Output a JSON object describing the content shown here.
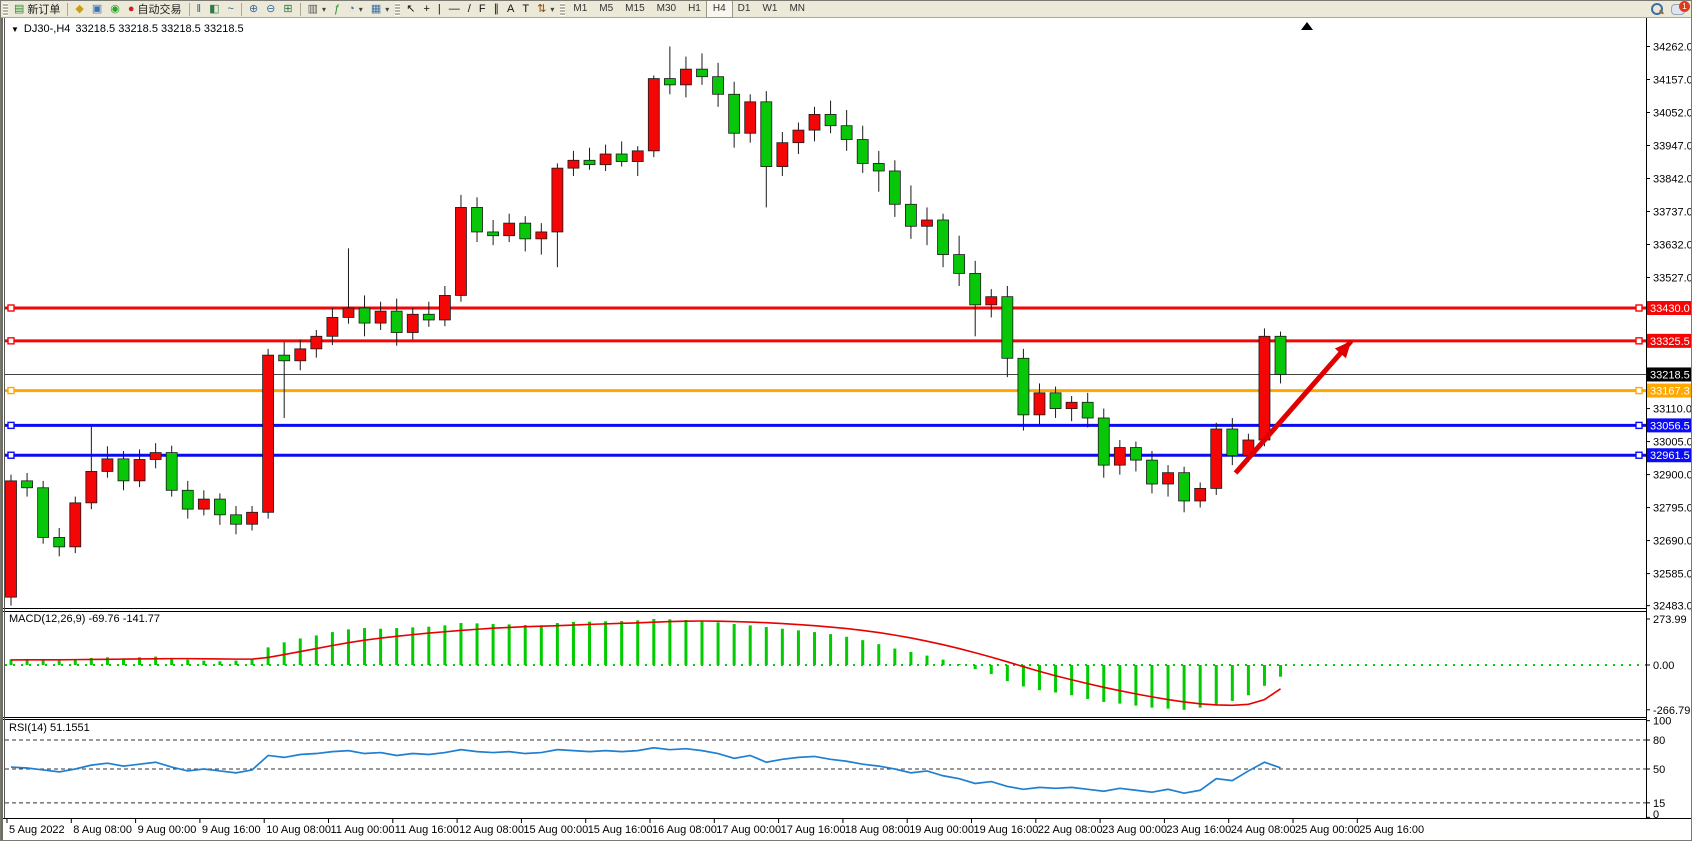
{
  "toolbar": {
    "new_order": {
      "label": "新订单",
      "glyph": "▤",
      "color": "#2e8b2e"
    },
    "tools": [
      {
        "name": "styler-button",
        "glyph": "◆",
        "color": "#c8a018"
      },
      {
        "name": "terminal-button",
        "glyph": "▣",
        "color": "#3d6fb8"
      },
      {
        "name": "signal-button",
        "glyph": "◉",
        "color": "#2fa32f"
      },
      {
        "name": "autotrade-button",
        "glyph": "●",
        "color": "#cc2222",
        "label": "自动交易"
      }
    ],
    "chart_modes": [
      {
        "name": "bar-chart-button",
        "glyph": "‖",
        "color": "#355f8a"
      },
      {
        "name": "candlestick-button",
        "glyph": "◧",
        "color": "#2f7a46"
      },
      {
        "name": "line-chart-button",
        "glyph": "~",
        "color": "#355f8a"
      }
    ],
    "zoom_tools": [
      {
        "name": "zoom-in-button",
        "glyph": "⊕",
        "color": "#3a6ea5"
      },
      {
        "name": "zoom-out-button",
        "glyph": "⊖",
        "color": "#3a6ea5"
      },
      {
        "name": "tile-windows-button",
        "glyph": "⊞",
        "color": "#2f7a46"
      }
    ],
    "object_tools": [
      {
        "name": "profiles-button",
        "glyph": "▥",
        "color": "#555",
        "caret": true
      },
      {
        "name": "indicators-button",
        "glyph": "ƒ",
        "color": "#2e8b2e"
      },
      {
        "name": "periods-button",
        "glyph": "◔",
        "color": "#3a6ea5",
        "caret": true
      },
      {
        "name": "templates-button",
        "glyph": "▦",
        "color": "#3a6ea5",
        "caret": true
      }
    ],
    "draw_tools": [
      {
        "name": "cursor-button",
        "glyph": "↖",
        "color": "#111"
      },
      {
        "name": "crosshair-button",
        "glyph": "+",
        "color": "#111"
      },
      {
        "name": "vline-button",
        "glyph": "|",
        "color": "#111"
      },
      {
        "name": "hline-button",
        "glyph": "—",
        "color": "#111"
      },
      {
        "name": "trendline-button",
        "glyph": "/",
        "color": "#111"
      },
      {
        "name": "fibo-button",
        "glyph": "F",
        "color": "#111"
      },
      {
        "name": "channel-button",
        "glyph": "∥",
        "color": "#111"
      },
      {
        "name": "text-button",
        "glyph": "A",
        "color": "#111"
      },
      {
        "name": "label-button",
        "glyph": "T",
        "color": "#111"
      },
      {
        "name": "arrows-button",
        "glyph": "⇅",
        "color": "#884400",
        "caret": true
      }
    ],
    "timeframes": [
      "M1",
      "M5",
      "M15",
      "M30",
      "H1",
      "H4",
      "D1",
      "W1",
      "MN"
    ],
    "active_timeframe": "H4",
    "chat_badge": "1"
  },
  "chart_header": {
    "collapse_icon": "▼",
    "symbol_period": "DJ30-,H4",
    "quotes": "33218.5 33218.5 33218.5 33218.5"
  },
  "macd_label": "MACD(12,26,9) -69.76 -141.77",
  "rsi_label": "RSI(14) 51.1551",
  "chart_data": {
    "type": "candlestick",
    "symbol": "DJ30-",
    "timeframe": "H4",
    "current_price": 33218.5,
    "colors": {
      "up": "#f40606",
      "down": "#08c608",
      "wick": "#1a1a1a",
      "macd_hist": "#00cc00",
      "macd_signal": "#e80000",
      "rsi_line": "#1f7fd0",
      "level_dash": "#333333",
      "red_line": "#f40606",
      "orange_line": "#ffa800",
      "blue_line": "#0c0cf4",
      "price_line": "#444444",
      "arrow": "#e00000"
    },
    "candles": [
      [
        32510,
        32900,
        32483,
        32880
      ],
      [
        32880,
        32905,
        32830,
        32858
      ],
      [
        32858,
        32880,
        32680,
        32700
      ],
      [
        32700,
        32730,
        32640,
        32670
      ],
      [
        32670,
        32830,
        32650,
        32810
      ],
      [
        32810,
        33056,
        32790,
        32910
      ],
      [
        32910,
        32990,
        32890,
        32950
      ],
      [
        32950,
        32975,
        32850,
        32880
      ],
      [
        32880,
        32980,
        32860,
        32948
      ],
      [
        32948,
        33000,
        32920,
        32970
      ],
      [
        32970,
        32992,
        32830,
        32850
      ],
      [
        32850,
        32880,
        32760,
        32790
      ],
      [
        32790,
        32850,
        32770,
        32822
      ],
      [
        32822,
        32840,
        32740,
        32772
      ],
      [
        32772,
        32800,
        32710,
        32742
      ],
      [
        32742,
        32800,
        32722,
        32780
      ],
      [
        32780,
        33300,
        32760,
        33280
      ],
      [
        33280,
        33322,
        33080,
        33262
      ],
      [
        33262,
        33330,
        33232,
        33300
      ],
      [
        33300,
        33360,
        33272,
        33340
      ],
      [
        33340,
        33430,
        33312,
        33400
      ],
      [
        33400,
        33620,
        33380,
        33430
      ],
      [
        33430,
        33470,
        33340,
        33382
      ],
      [
        33382,
        33450,
        33360,
        33420
      ],
      [
        33420,
        33460,
        33310,
        33352
      ],
      [
        33352,
        33430,
        33330,
        33410
      ],
      [
        33410,
        33450,
        33370,
        33392
      ],
      [
        33392,
        33500,
        33372,
        33470
      ],
      [
        33470,
        33790,
        33450,
        33750
      ],
      [
        33750,
        33782,
        33640,
        33672
      ],
      [
        33672,
        33710,
        33630,
        33660
      ],
      [
        33660,
        33730,
        33640,
        33700
      ],
      [
        33700,
        33722,
        33610,
        33650
      ],
      [
        33650,
        33700,
        33600,
        33672
      ],
      [
        33672,
        33890,
        33560,
        33875
      ],
      [
        33875,
        33930,
        33850,
        33900
      ],
      [
        33900,
        33940,
        33870,
        33886
      ],
      [
        33886,
        33950,
        33866,
        33920
      ],
      [
        33920,
        33960,
        33880,
        33896
      ],
      [
        33896,
        33945,
        33850,
        33930
      ],
      [
        33930,
        34170,
        33910,
        34160
      ],
      [
        34160,
        34262,
        34110,
        34140
      ],
      [
        34140,
        34230,
        34100,
        34190
      ],
      [
        34190,
        34240,
        34140,
        34166
      ],
      [
        34166,
        34210,
        34070,
        34110
      ],
      [
        34110,
        34150,
        33940,
        33986
      ],
      [
        33986,
        34110,
        33956,
        34086
      ],
      [
        34086,
        34120,
        33750,
        33880
      ],
      [
        33880,
        33990,
        33850,
        33956
      ],
      [
        33956,
        34020,
        33920,
        33996
      ],
      [
        33996,
        34070,
        33960,
        34046
      ],
      [
        34046,
        34090,
        33986,
        34010
      ],
      [
        34010,
        34060,
        33930,
        33966
      ],
      [
        33966,
        34010,
        33860,
        33890
      ],
      [
        33890,
        33930,
        33800,
        33866
      ],
      [
        33866,
        33900,
        33720,
        33760
      ],
      [
        33760,
        33820,
        33650,
        33690
      ],
      [
        33690,
        33750,
        33630,
        33710
      ],
      [
        33710,
        33730,
        33560,
        33600
      ],
      [
        33600,
        33660,
        33500,
        33540
      ],
      [
        33540,
        33580,
        33340,
        33440
      ],
      [
        33440,
        33490,
        33400,
        33466
      ],
      [
        33466,
        33500,
        33210,
        33270
      ],
      [
        33270,
        33300,
        33040,
        33090
      ],
      [
        33090,
        33190,
        33060,
        33160
      ],
      [
        33160,
        33180,
        33080,
        33110
      ],
      [
        33110,
        33150,
        33070,
        33130
      ],
      [
        33130,
        33160,
        33050,
        33080
      ],
      [
        33080,
        33110,
        32890,
        32930
      ],
      [
        32930,
        33010,
        32900,
        32986
      ],
      [
        32986,
        33005,
        32910,
        32946
      ],
      [
        32946,
        32975,
        32840,
        32870
      ],
      [
        32870,
        32930,
        32830,
        32906
      ],
      [
        32906,
        32925,
        32780,
        32816
      ],
      [
        32816,
        32875,
        32795,
        32856
      ],
      [
        32856,
        33065,
        32835,
        33045
      ],
      [
        33045,
        33080,
        32930,
        32960
      ],
      [
        32960,
        33030,
        32940,
        33010
      ],
      [
        33010,
        33365,
        32990,
        33340
      ],
      [
        33340,
        33355,
        33190,
        33218.5
      ]
    ],
    "macd_main": [
      34,
      36,
      30,
      26,
      32,
      42,
      46,
      40,
      46,
      50,
      42,
      32,
      26,
      22,
      26,
      32,
      105,
      135,
      158,
      176,
      196,
      212,
      220,
      216,
      220,
      224,
      228,
      236,
      250,
      248,
      244,
      242,
      238,
      236,
      250,
      256,
      258,
      260,
      262,
      266,
      274,
      272,
      268,
      262,
      254,
      244,
      236,
      226,
      216,
      206,
      196,
      184,
      168,
      148,
      124,
      98,
      78,
      56,
      32,
      6,
      -24,
      -54,
      -96,
      -128,
      -150,
      -164,
      -180,
      -202,
      -220,
      -230,
      -242,
      -254,
      -260,
      -266.8,
      -254,
      -236,
      -214,
      -180,
      -124,
      -69.8
    ],
    "macd_signal_series": [
      30,
      31,
      31,
      31,
      32,
      33,
      34,
      35,
      36,
      37,
      38,
      38,
      37,
      36,
      35,
      35,
      45,
      62,
      80,
      98,
      116,
      133,
      148,
      160,
      171,
      181,
      190,
      198,
      206,
      213,
      219,
      224,
      228,
      231,
      234,
      238,
      242,
      245,
      248,
      251,
      255,
      259,
      261,
      262,
      261,
      259,
      256,
      252,
      247,
      241,
      234,
      226,
      217,
      206,
      193,
      178,
      161,
      142,
      121,
      98,
      73,
      47,
      19,
      -10,
      -38,
      -64,
      -88,
      -111,
      -133,
      -153,
      -172,
      -190,
      -206,
      -220,
      -231,
      -238,
      -240,
      -234,
      -206,
      -142
    ],
    "rsi_series": [
      52,
      51,
      49,
      47,
      50,
      54,
      56,
      53,
      55,
      57,
      52,
      48,
      50,
      48,
      46,
      49,
      64,
      62,
      65,
      66,
      68,
      69,
      66,
      67,
      64,
      66,
      65,
      67,
      70,
      68,
      67,
      68,
      66,
      67,
      70,
      69,
      68,
      69,
      68,
      69,
      72,
      70,
      71,
      69,
      66,
      61,
      64,
      57,
      60,
      62,
      63,
      60,
      58,
      55,
      53,
      50,
      46,
      48,
      43,
      40,
      35,
      37,
      32,
      29,
      31,
      30,
      31,
      29,
      27,
      30,
      28,
      26,
      29,
      25,
      28,
      40,
      38,
      48,
      57,
      51.2
    ],
    "macd_values": {
      "main": -69.76,
      "signal": -141.77
    },
    "rsi_value": 51.1551,
    "hlines": [
      {
        "price": 33430.0,
        "label": "33430.0",
        "color_key": "red_line",
        "width": 3,
        "squares": true
      },
      {
        "price": 33325.5,
        "label": "33325.5",
        "color_key": "red_line",
        "width": 3,
        "squares": true
      },
      {
        "price": 33218.5,
        "label": "33218.5",
        "color_key": "price_line",
        "width": 1,
        "squares": false,
        "label_bg": "#000000"
      },
      {
        "price": 33167.3,
        "label": "33167.3",
        "color_key": "orange_line",
        "width": 3,
        "squares": true
      },
      {
        "price": 33056.5,
        "label": "33056.5",
        "color_key": "blue_line",
        "width": 3,
        "squares": true
      },
      {
        "price": 32961.5,
        "label": "32961.5",
        "color_key": "blue_line",
        "width": 3,
        "squares": true
      }
    ],
    "price_axis_ticks": [
      34262.0,
      34157.0,
      34052.0,
      33947.0,
      33842.0,
      33737.0,
      33632.0,
      33527.0,
      33110.0,
      33005.0,
      32900.0,
      32795.0,
      32690.0,
      32585.0,
      32483.0
    ],
    "macd_axis_ticks": [
      273.99,
      0.0,
      -266.79
    ],
    "rsi_axis_ticks": [
      100,
      80,
      50,
      15,
      0
    ],
    "rsi_levels": [
      80,
      50,
      15
    ],
    "time_labels": [
      "5 Aug 2022",
      "8 Aug 08:00",
      "9 Aug 00:00",
      "9 Aug 16:00",
      "10 Aug 08:00",
      "11 Aug 00:00",
      "11 Aug 16:00",
      "12 Aug 08:00",
      "15 Aug 00:00",
      "15 Aug 16:00",
      "16 Aug 08:00",
      "17 Aug 00:00",
      "17 Aug 16:00",
      "18 Aug 08:00",
      "19 Aug 00:00",
      "19 Aug 16:00",
      "22 Aug 08:00",
      "23 Aug 00:00",
      "23 Aug 16:00",
      "24 Aug 08:00",
      "25 Aug 00:00",
      "25 Aug 16:00"
    ],
    "arrow": {
      "from_bar": 76.2,
      "from_price": 32905,
      "to_bar": 83.4,
      "to_price": 33325
    }
  }
}
